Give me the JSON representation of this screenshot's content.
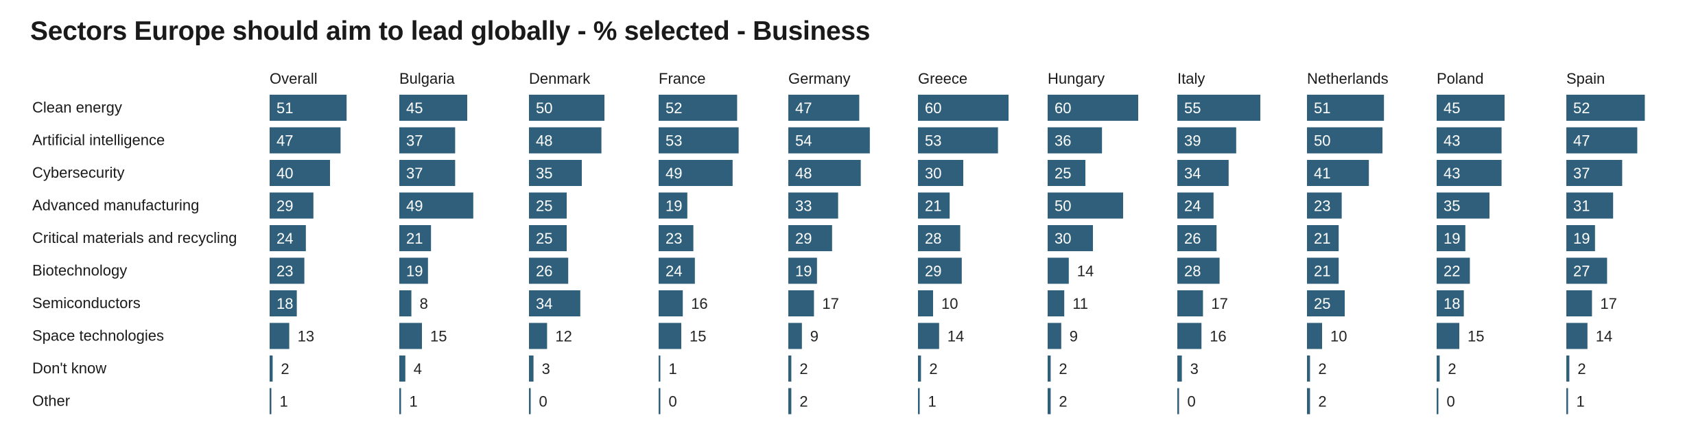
{
  "chart_data": {
    "type": "bar",
    "title": "Sectors Europe should aim to lead globally - % selected - Business",
    "categories": [
      "Clean energy",
      "Artificial intelligence",
      "Cybersecurity",
      "Advanced manufacturing",
      "Critical materials and recycling",
      "Biotechnology",
      "Semiconductors",
      "Space technologies",
      "Don't know",
      "Other"
    ],
    "series": [
      {
        "name": "Overall",
        "values": [
          51,
          47,
          40,
          29,
          24,
          23,
          18,
          13,
          2,
          1
        ]
      },
      {
        "name": "Bulgaria",
        "values": [
          45,
          37,
          37,
          49,
          21,
          19,
          8,
          15,
          4,
          1
        ]
      },
      {
        "name": "Denmark",
        "values": [
          50,
          48,
          35,
          25,
          25,
          26,
          34,
          12,
          3,
          0
        ]
      },
      {
        "name": "France",
        "values": [
          52,
          53,
          49,
          19,
          23,
          24,
          16,
          15,
          1,
          0
        ]
      },
      {
        "name": "Germany",
        "values": [
          47,
          54,
          48,
          33,
          29,
          19,
          17,
          9,
          2,
          2
        ]
      },
      {
        "name": "Greece",
        "values": [
          60,
          53,
          30,
          21,
          28,
          29,
          10,
          14,
          2,
          1
        ]
      },
      {
        "name": "Hungary",
        "values": [
          60,
          36,
          25,
          50,
          30,
          14,
          11,
          9,
          2,
          2
        ]
      },
      {
        "name": "Italy",
        "values": [
          55,
          39,
          34,
          24,
          26,
          28,
          17,
          16,
          3,
          0
        ]
      },
      {
        "name": "Netherlands",
        "values": [
          51,
          50,
          41,
          23,
          21,
          21,
          25,
          10,
          2,
          2
        ]
      },
      {
        "name": "Poland",
        "values": [
          45,
          43,
          43,
          35,
          19,
          22,
          18,
          15,
          2,
          0
        ]
      },
      {
        "name": "Spain",
        "values": [
          52,
          47,
          37,
          31,
          19,
          27,
          17,
          14,
          2,
          1
        ]
      }
    ],
    "xlim": [
      0,
      60
    ],
    "grid": false,
    "legend": "none",
    "colors": {
      "bar": "#2f5f7a",
      "label_inside": "#ffffff",
      "label_outside": "#222222",
      "text": "#1a1a1a"
    }
  }
}
